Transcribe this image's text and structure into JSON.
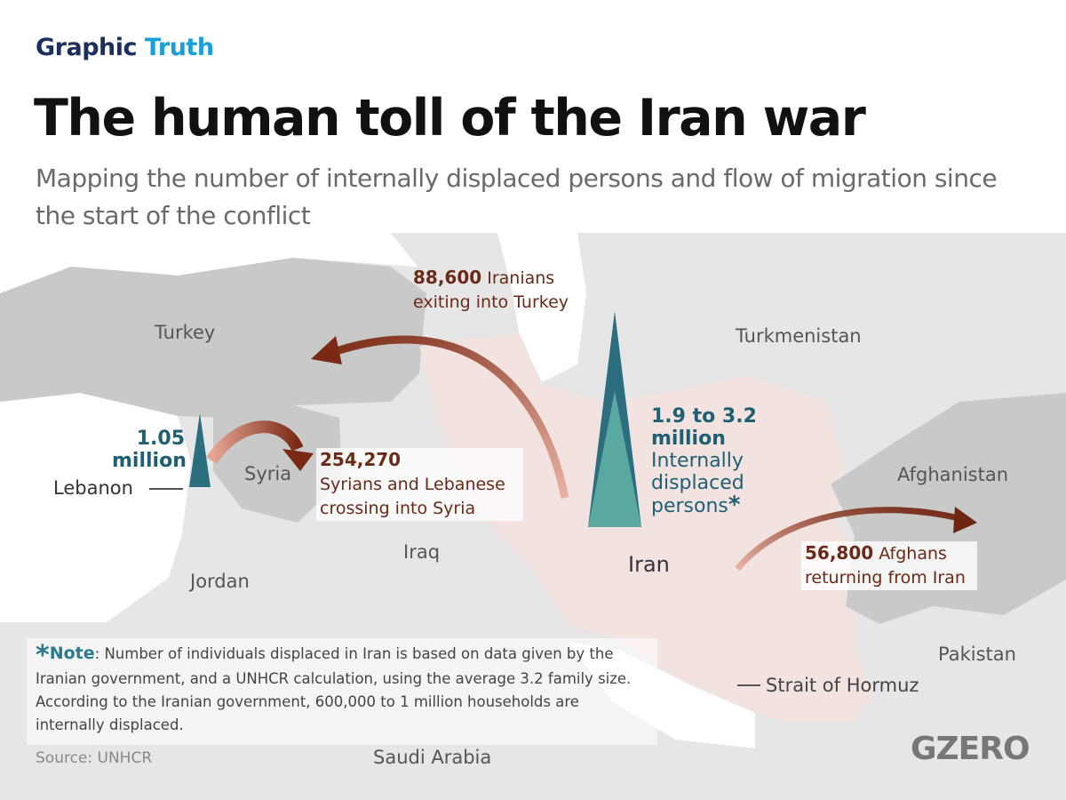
{
  "header": {
    "brand_first": "Graphic",
    "brand_second": "Truth",
    "title": "The human toll of the Iran war",
    "subtitle": "Mapping the number of internally displaced persons and flow of migration since the start of the conflict"
  },
  "map": {
    "countries": [
      "Turkey",
      "Turkmenistan",
      "Syria",
      "Iraq",
      "Jordan",
      "Iran",
      "Afghanistan",
      "Pakistan",
      "Saudi Arabia"
    ],
    "places": [
      "Lebanon",
      "Strait of Hormuz"
    ]
  },
  "flows": [
    {
      "number": "88,600",
      "text": "Iranians exiting into Turkey"
    },
    {
      "number": "254,270",
      "text": "Syrians and Lebanese crossing into Syria"
    },
    {
      "number": "56,800",
      "text": "Afghans returning from Iran"
    }
  ],
  "spikes": [
    {
      "number": "1.05 million"
    },
    {
      "number": "1.9 to 3.2 million",
      "text": "Internally displaced persons",
      "mark": "*"
    }
  ],
  "footer": {
    "note_mark": "*",
    "note_label": "Note",
    "note_text": ": Number of individuals displaced in Iran is based on data given by the Iranian government, and a UNHCR calculation, using the average 3.2 family size. According to the Iranian government, 600,000 to 1 million households are internally displaced.",
    "source": "Source: UNHCR",
    "logo": "GZERO"
  }
}
